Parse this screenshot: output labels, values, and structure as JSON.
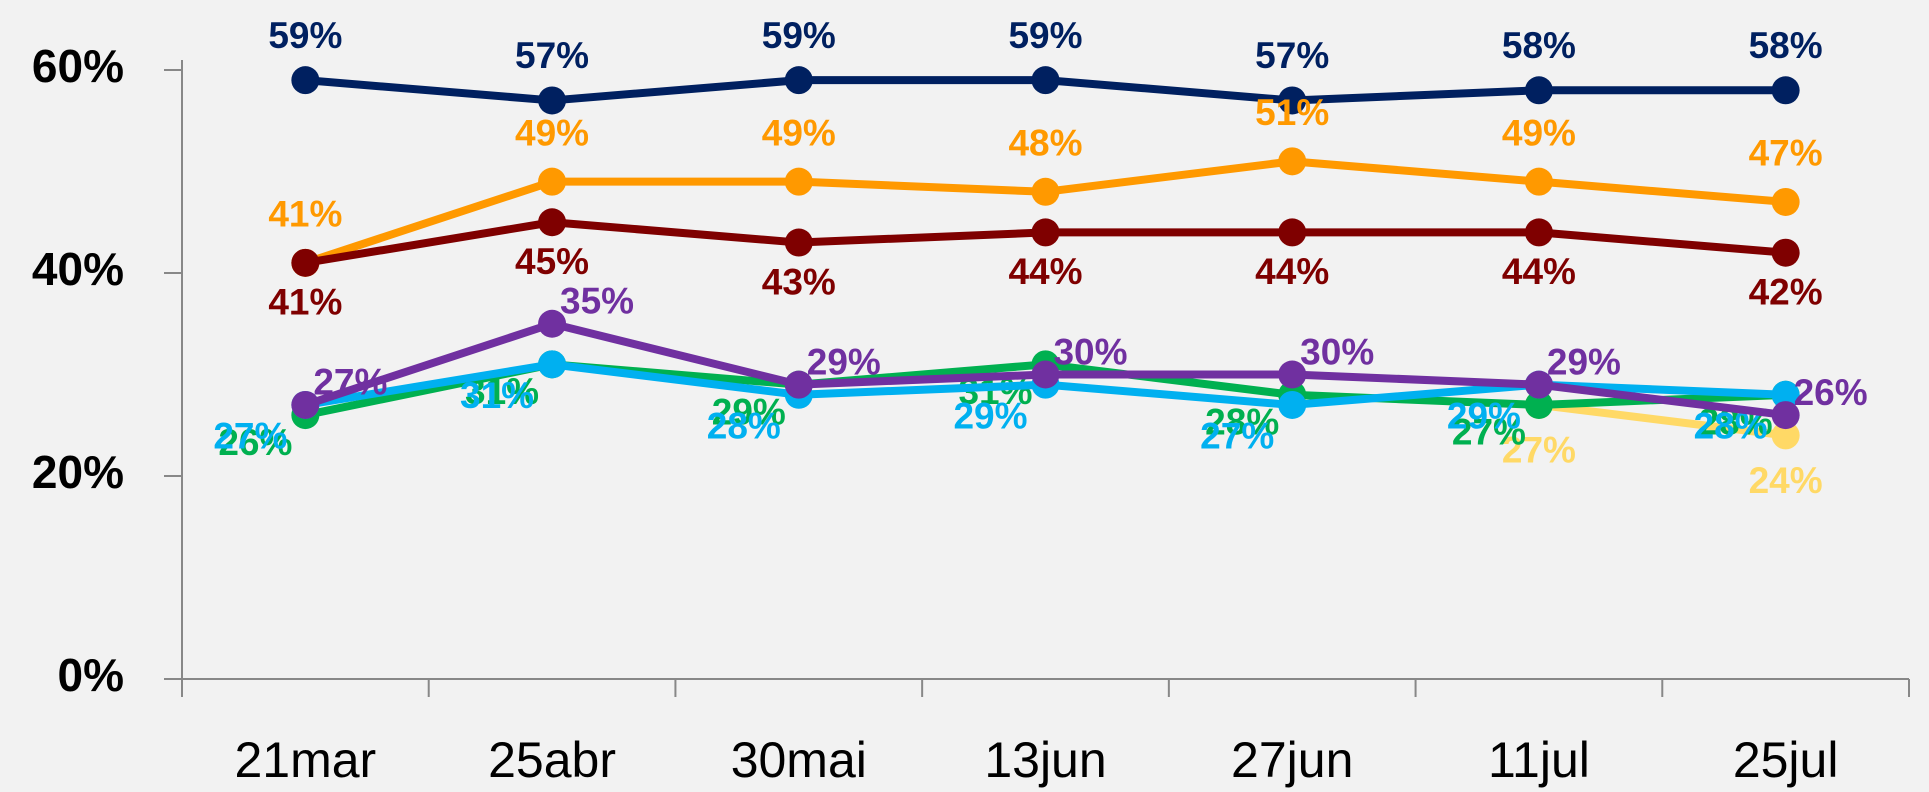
{
  "chart_data": {
    "type": "line",
    "categories": [
      "21mar",
      "25abr",
      "30mai",
      "13jun",
      "27jun",
      "11jul",
      "25jul"
    ],
    "ylim": [
      0,
      60
    ],
    "yticks": [
      {
        "value": 0,
        "label": "0%"
      },
      {
        "value": 20,
        "label": "20%"
      },
      {
        "value": 40,
        "label": "40%"
      },
      {
        "value": 60,
        "label": "60%"
      }
    ],
    "series": [
      {
        "color": "#002060",
        "values": [
          59,
          57,
          59,
          59,
          57,
          58,
          58
        ],
        "value_labels": [
          "59%",
          "57%",
          "59%",
          "59%",
          "57%",
          "58%",
          "58%"
        ]
      },
      {
        "color": "#ff9900",
        "values": [
          41,
          49,
          49,
          48,
          51,
          49,
          47
        ],
        "value_labels": [
          "41%",
          "49%",
          "49%",
          "48%",
          "51%",
          "49%",
          "47%"
        ]
      },
      {
        "color": "#7f0000",
        "values": [
          41,
          45,
          43,
          44,
          44,
          44,
          42
        ],
        "value_labels": [
          "41%",
          "45%",
          "43%",
          "44%",
          "44%",
          "44%",
          "42%"
        ]
      },
      {
        "color": "#ffd966",
        "values": [
          null,
          null,
          null,
          null,
          null,
          27,
          24
        ],
        "value_labels": [
          null,
          null,
          null,
          null,
          null,
          "27%",
          "24%"
        ]
      },
      {
        "color": "#00b050",
        "values": [
          26,
          31,
          29,
          31,
          28,
          27,
          28
        ],
        "value_labels": [
          "26%",
          "31%",
          "29%",
          "31%",
          "28%",
          "27%",
          "28%"
        ]
      },
      {
        "color": "#00b0f0",
        "values": [
          27,
          31,
          28,
          29,
          27,
          29,
          28
        ],
        "value_labels": [
          "27%",
          "31%",
          "28%",
          "29%",
          "27%",
          "29%",
          "28%"
        ]
      },
      {
        "color": "#7030a0",
        "values": [
          27,
          35,
          29,
          30,
          30,
          29,
          26
        ],
        "value_labels": [
          "27%",
          "35%",
          "29%",
          "30%",
          "30%",
          "29%",
          "26%"
        ]
      }
    ]
  }
}
